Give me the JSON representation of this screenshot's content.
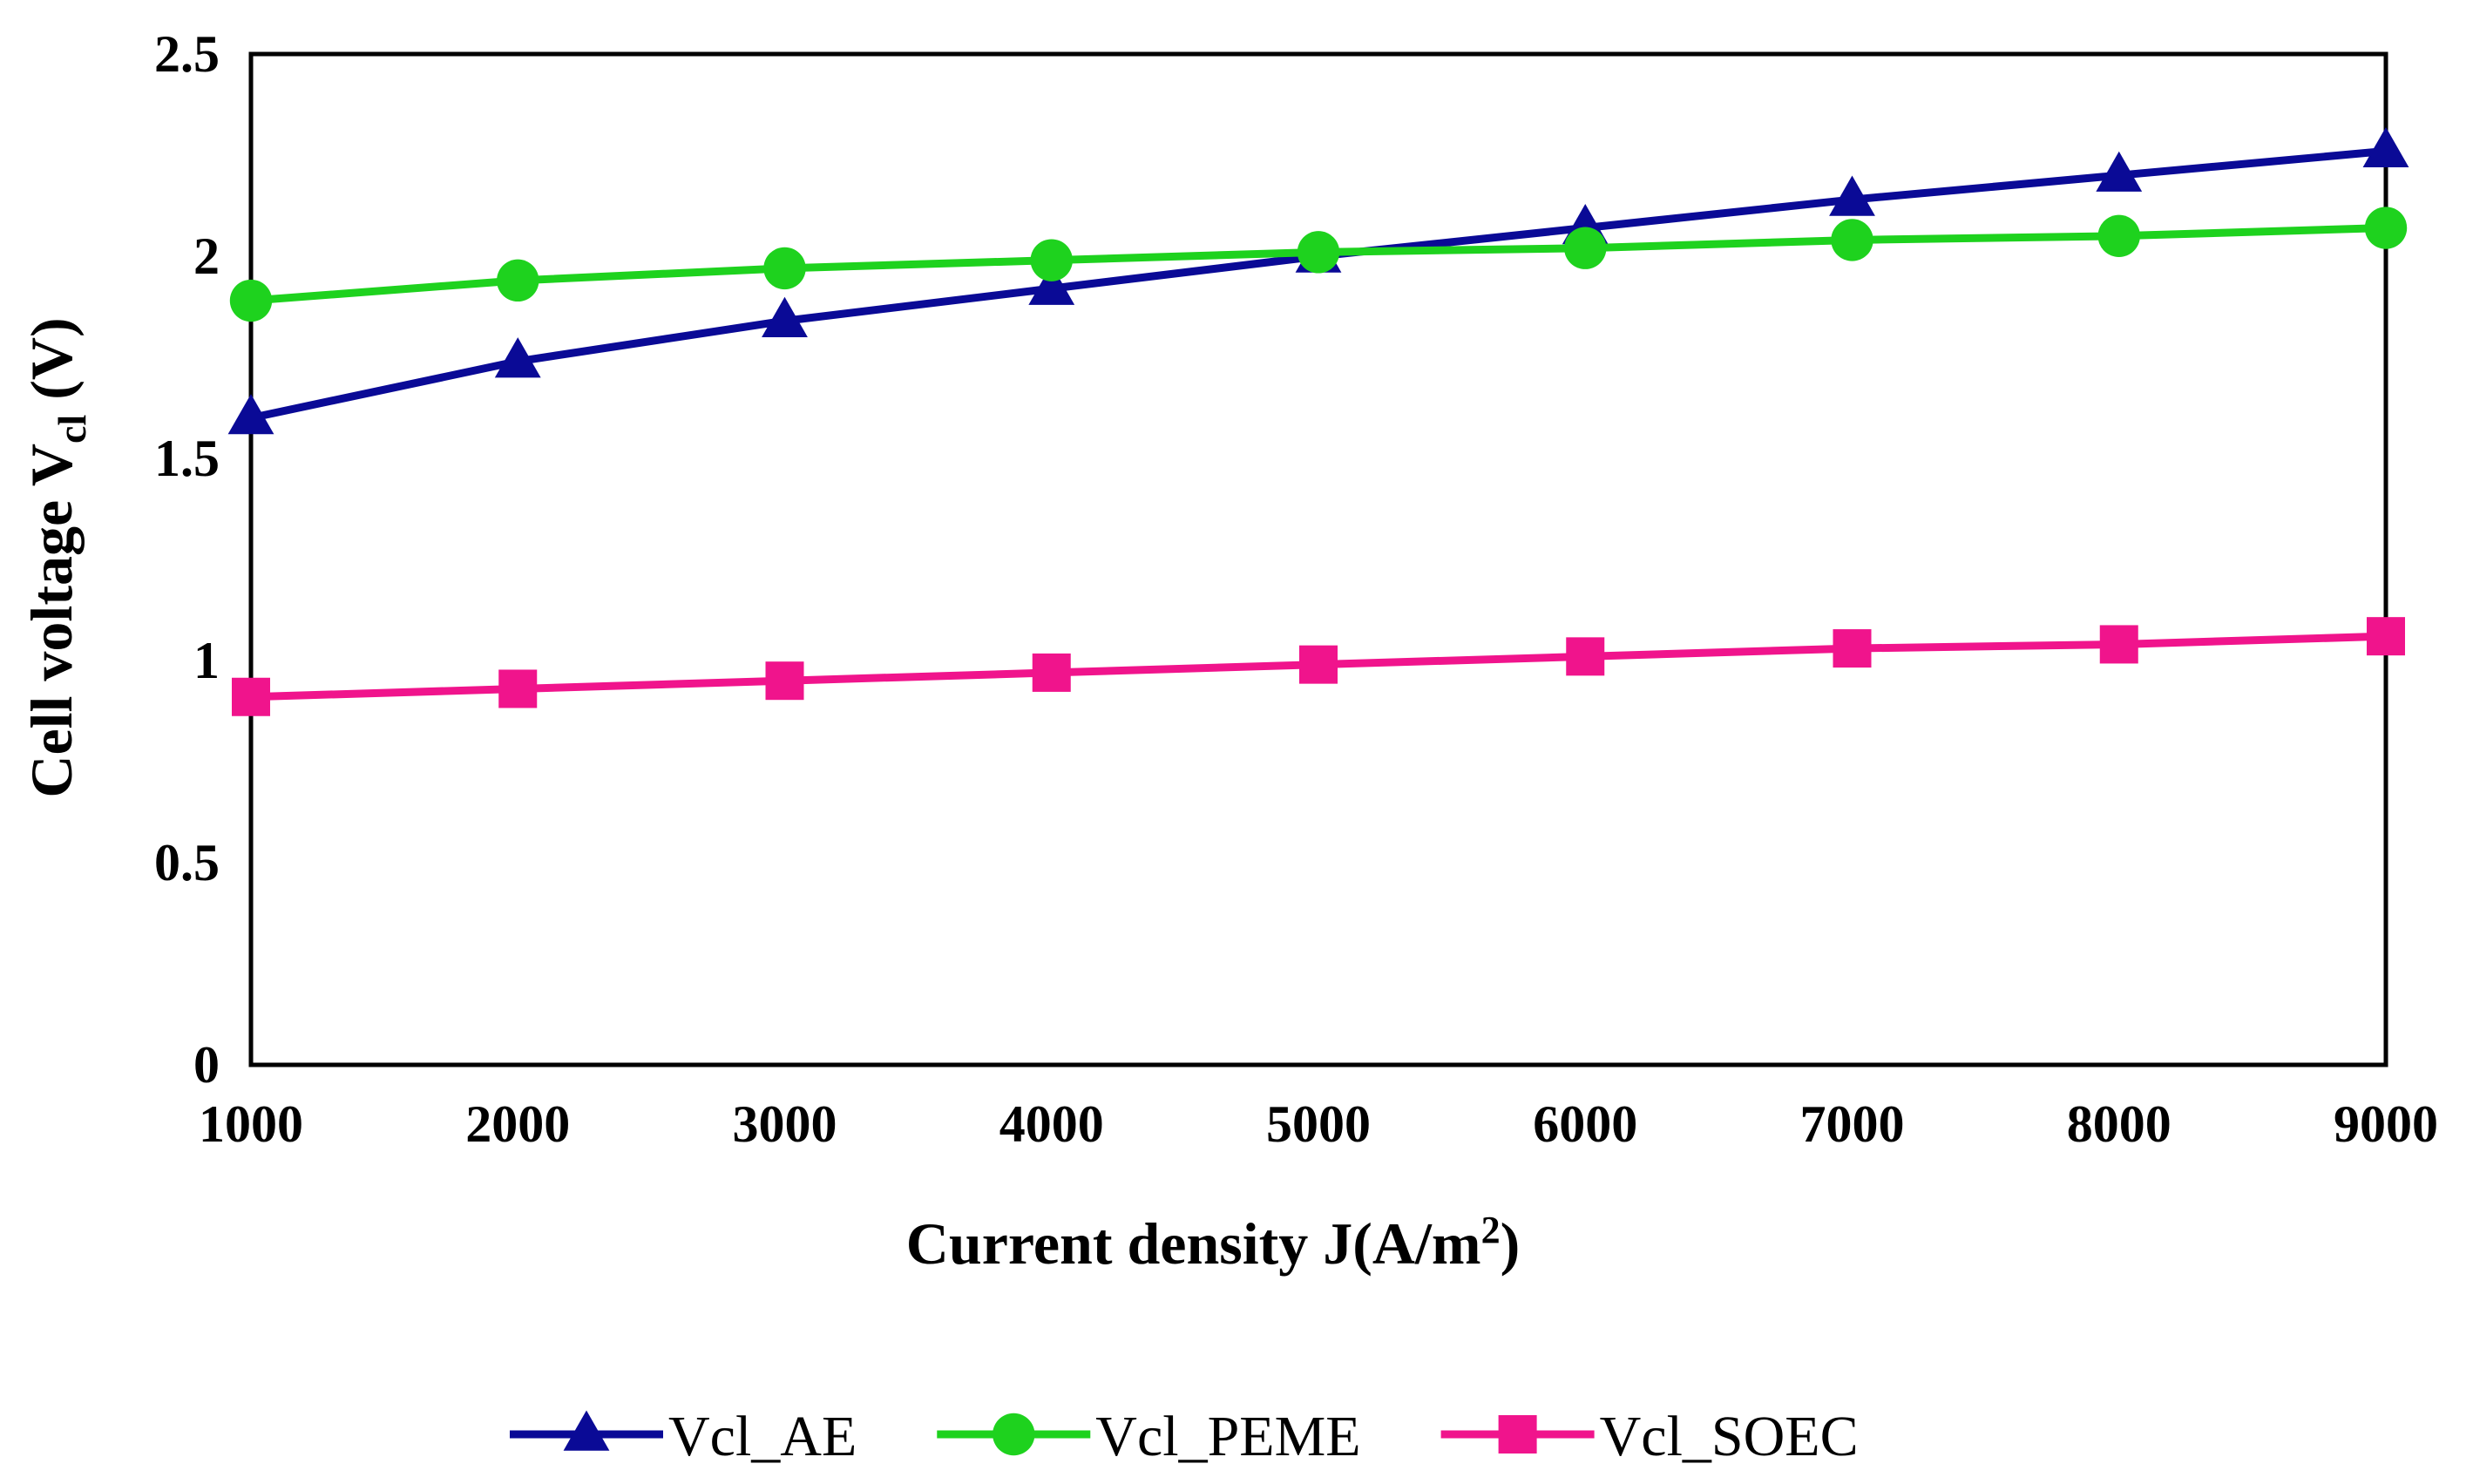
{
  "chart_data": {
    "type": "line",
    "title": "",
    "xlabel": "Current density J(A/m",
    "xlabel_sup": "2",
    "xlabel_suffix": ")",
    "ylabel": "Cell voltage V",
    "ylabel_sub": "cl",
    "ylabel_suffix": " (V)",
    "x": [
      1000,
      2000,
      3000,
      4000,
      5000,
      6000,
      7000,
      8000,
      9000
    ],
    "xlim": [
      1000,
      9000
    ],
    "ylim": [
      0,
      2.5
    ],
    "xticks": [
      "1000",
      "2000",
      "3000",
      "4000",
      "5000",
      "6000",
      "7000",
      "8000",
      "9000"
    ],
    "yticks": [
      "0",
      "0.5",
      "1",
      "1.5",
      "2",
      "2.5"
    ],
    "ytick_values": [
      0,
      0.5,
      1,
      1.5,
      2,
      2.5
    ],
    "grid": false,
    "legend_position": "bottom",
    "series": [
      {
        "name": "Vcl_AE",
        "color": "#0A0A96",
        "marker": "triangle",
        "values": [
          1.6,
          1.74,
          1.84,
          1.92,
          2.0,
          2.07,
          2.14,
          2.2,
          2.26
        ]
      },
      {
        "name": "Vcl_PEME",
        "color": "#1ED21E",
        "marker": "circle",
        "values": [
          1.89,
          1.94,
          1.97,
          1.99,
          2.01,
          2.02,
          2.04,
          2.05,
          2.07
        ]
      },
      {
        "name": "Vcl_SOEC",
        "color": "#F0148C",
        "marker": "square",
        "values": [
          0.91,
          0.93,
          0.95,
          0.97,
          0.99,
          1.01,
          1.03,
          1.04,
          1.06
        ]
      }
    ]
  }
}
